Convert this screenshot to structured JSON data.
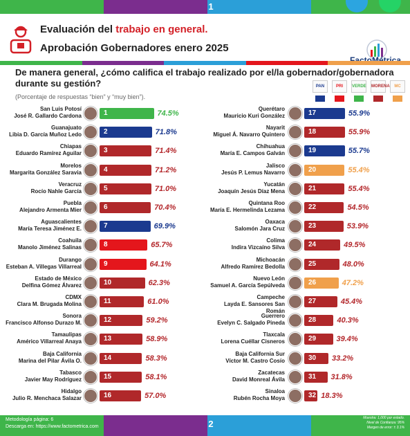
{
  "page_top": "1",
  "page_bottom": "2",
  "title_prefix": "Evaluación del ",
  "title_highlight": "trabajo en general.",
  "subtitle": "Aprobación Gobernadores enero 2025",
  "brand": "FactoMétrica",
  "question": "De manera general, ¿cómo califica el trabajo realizado por el/la gobernador/gobernadora durante su gestión?",
  "note": "(Porcentaje de respuestas “bien” y “muy bien”).",
  "footer": {
    "left1": "Metodología página: 6",
    "left2": "Descarga en: https://www.factometrica.com",
    "right1": "Muestra: 1,000 por estado.",
    "right2": "Nivel de Confianza: 95%",
    "right3": "Margen de error: ± 3.1%"
  },
  "colors": {
    "PAN": "#1b3a8f",
    "PRI": "#e4161c",
    "MORENA": "#b0282a",
    "MC": "#f0a04b",
    "VERDE": "#3fb54a",
    "values": "#b3262a"
  },
  "chart_data": {
    "type": "bar",
    "ylim": [
      0,
      100
    ],
    "unit": "%",
    "items": [
      {
        "rank": "1",
        "state": "San Luis Potosí",
        "governor": "José R. Gallardo Cardona",
        "value": 74.5,
        "label": "74.5%",
        "party": "VERDE"
      },
      {
        "rank": "2",
        "state": "Guanajuato",
        "governor": "Libia D. García Muñoz Ledo",
        "value": 71.8,
        "label": "71.8%",
        "party": "PAN"
      },
      {
        "rank": "3",
        "state": "Chiapas",
        "governor": "Eduardo Ramírez Aguilar",
        "value": 71.4,
        "label": "71.4%",
        "party": "MORENA"
      },
      {
        "rank": "4",
        "state": "Morelos",
        "governor": "Margarita González Saravia",
        "value": 71.2,
        "label": "71.2%",
        "party": "MORENA"
      },
      {
        "rank": "5",
        "state": "Veracruz",
        "governor": "Rocío Nahle García",
        "value": 71.0,
        "label": "71.0%",
        "party": "MORENA"
      },
      {
        "rank": "6",
        "state": "Puebla",
        "governor": "Alejandro Armenta Mier",
        "value": 70.4,
        "label": "70.4%",
        "party": "MORENA"
      },
      {
        "rank": "7",
        "state": "Aguascalientes",
        "governor": "María Teresa Jiménez E.",
        "value": 69.9,
        "label": "69.9%",
        "party": "PAN"
      },
      {
        "rank": "8",
        "state": "Coahuila",
        "governor": "Manolo Jiménez Salinas",
        "value": 65.7,
        "label": "65.7%",
        "party": "PRI"
      },
      {
        "rank": "9",
        "state": "Durango",
        "governor": "Esteban A. Villegas Villarreal",
        "value": 64.1,
        "label": "64.1%",
        "party": "PRI"
      },
      {
        "rank": "10",
        "state": "Estado de México",
        "governor": "Delfina Gómez Álvarez",
        "value": 62.3,
        "label": "62.3%",
        "party": "MORENA"
      },
      {
        "rank": "11",
        "state": "CDMX",
        "governor": "Clara M. Brugada Molina",
        "value": 61.0,
        "label": "61.0%",
        "party": "MORENA"
      },
      {
        "rank": "12",
        "state": "Sonora",
        "governor": "Francisco Alfonso Durazo M.",
        "value": 59.2,
        "label": "59.2%",
        "party": "MORENA"
      },
      {
        "rank": "13",
        "state": "Tamaulipas",
        "governor": "Américo Villarreal Anaya",
        "value": 58.9,
        "label": "58.9%",
        "party": "MORENA"
      },
      {
        "rank": "14",
        "state": "Baja California",
        "governor": "Marina del Pilar Ávila O.",
        "value": 58.3,
        "label": "58.3%",
        "party": "MORENA"
      },
      {
        "rank": "15",
        "state": "Tabasco",
        "governor": "Javier May Rodríguez",
        "value": 58.1,
        "label": "58.1%",
        "party": "MORENA"
      },
      {
        "rank": "16",
        "state": "Hidalgo",
        "governor": "Julio R. Menchaca Salazar",
        "value": 57.0,
        "label": "57.0%",
        "party": "MORENA"
      },
      {
        "rank": "17",
        "state": "Querétaro",
        "governor": "Mauricio Kuri González",
        "value": 55.9,
        "label": "55.9%",
        "party": "PAN"
      },
      {
        "rank": "18",
        "state": "Nayarit",
        "governor": "Miguel Á. Navarro Quintero",
        "value": 55.9,
        "label": "55.9%",
        "party": "MORENA"
      },
      {
        "rank": "19",
        "state": "Chihuahua",
        "governor": "María E. Campos Galván",
        "value": 55.7,
        "label": "55.7%",
        "party": "PAN"
      },
      {
        "rank": "20",
        "state": "Jalisco",
        "governor": "Jesús P. Lemus Navarro",
        "value": 55.4,
        "label": "55.4%",
        "party": "MC"
      },
      {
        "rank": "21",
        "state": "Yucatán",
        "governor": "Joaquín Jesús Díaz Mena",
        "value": 55.4,
        "label": "55.4%",
        "party": "MORENA"
      },
      {
        "rank": "22",
        "state": "Quintana Roo",
        "governor": "María E. Hermelinda Lezama",
        "value": 54.5,
        "label": "54.5%",
        "party": "MORENA"
      },
      {
        "rank": "23",
        "state": "Oaxaca",
        "governor": "Salomón Jara Cruz",
        "value": 53.9,
        "label": "53.9%",
        "party": "MORENA"
      },
      {
        "rank": "24",
        "state": "Colima",
        "governor": "Indira Vizcaíno Silva",
        "value": 49.5,
        "label": "49.5%",
        "party": "MORENA"
      },
      {
        "rank": "25",
        "state": "Michoacán",
        "governor": "Alfredo Ramírez Bedolla",
        "value": 48.0,
        "label": "48.0%",
        "party": "MORENA"
      },
      {
        "rank": "26",
        "state": "Nuevo León",
        "governor": "Samuel A. García Sepúlveda",
        "value": 47.2,
        "label": "47.2%",
        "party": "MC"
      },
      {
        "rank": "27",
        "state": "Campeche",
        "governor": "Layda E. Sansores San Román",
        "value": 45.4,
        "label": "45.4%",
        "party": "MORENA"
      },
      {
        "rank": "28",
        "state": "Guerrero",
        "governor": "Evelyn C. Salgado Pineda",
        "value": 40.3,
        "label": "40.3%",
        "party": "MORENA"
      },
      {
        "rank": "29",
        "state": "Tlaxcala",
        "governor": "Lorena Cuéllar Cisneros",
        "value": 39.4,
        "label": "39.4%",
        "party": "MORENA"
      },
      {
        "rank": "30",
        "state": "Baja California Sur",
        "governor": "Víctor M. Castro Cosío",
        "value": 33.2,
        "label": "33.2%",
        "party": "MORENA"
      },
      {
        "rank": "31",
        "state": "Zacatecas",
        "governor": "David Monreal Ávila",
        "value": 31.8,
        "label": "31.8%",
        "party": "MORENA"
      },
      {
        "rank": "32",
        "state": "Sinaloa",
        "governor": "Rubén Rocha Moya",
        "value": 18.3,
        "label": "18.3%",
        "party": "MORENA"
      }
    ]
  },
  "legend": [
    {
      "party": "PAN",
      "label": "PAN"
    },
    {
      "party": "PRI",
      "label": "PRI"
    },
    {
      "party": "VERDE",
      "label": "VERDE"
    },
    {
      "party": "MORENA",
      "label": "MORENA"
    },
    {
      "party": "MC",
      "label": "MC"
    }
  ]
}
